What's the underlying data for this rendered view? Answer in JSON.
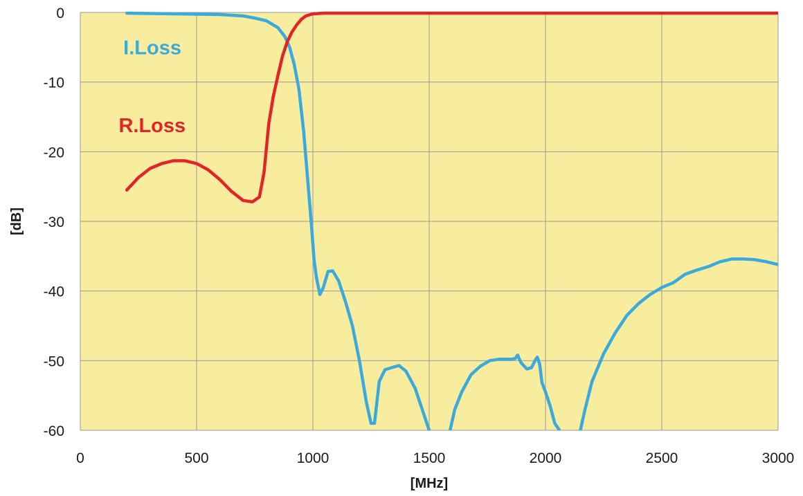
{
  "chart_data": {
    "type": "line",
    "xlabel": "[MHz]",
    "ylabel": "[dB]",
    "xlim": [
      0,
      3000
    ],
    "ylim": [
      -60,
      0
    ],
    "x_ticks": [
      0,
      500,
      1000,
      1500,
      2000,
      2500,
      3000
    ],
    "y_ticks": [
      0,
      -10,
      -20,
      -30,
      -40,
      -50,
      -60
    ],
    "grid": true,
    "plot_background": "#f8ec9f",
    "grid_color": "#9a9a9a",
    "series": [
      {
        "name": "I.Loss",
        "color": "#3aa9db",
        "label_at": [
          185,
          -6
        ],
        "points": [
          [
            200,
            -0.1
          ],
          [
            400,
            -0.2
          ],
          [
            600,
            -0.3
          ],
          [
            700,
            -0.5
          ],
          [
            750,
            -0.8
          ],
          [
            800,
            -1.2
          ],
          [
            850,
            -2.2
          ],
          [
            880,
            -3.5
          ],
          [
            900,
            -5.0
          ],
          [
            920,
            -7.5
          ],
          [
            940,
            -11
          ],
          [
            960,
            -17
          ],
          [
            980,
            -25
          ],
          [
            995,
            -31
          ],
          [
            1005,
            -35.5
          ],
          [
            1015,
            -38
          ],
          [
            1030,
            -40.5
          ],
          [
            1045,
            -39.5
          ],
          [
            1065,
            -37.2
          ],
          [
            1085,
            -37.1
          ],
          [
            1110,
            -38.5
          ],
          [
            1140,
            -41.5
          ],
          [
            1170,
            -45
          ],
          [
            1200,
            -50
          ],
          [
            1230,
            -56
          ],
          [
            1250,
            -59
          ],
          [
            1265,
            -59
          ],
          [
            1285,
            -53
          ],
          [
            1310,
            -51.3
          ],
          [
            1340,
            -51
          ],
          [
            1370,
            -50.7
          ],
          [
            1400,
            -51.5
          ],
          [
            1440,
            -54
          ],
          [
            1475,
            -57.5
          ],
          [
            1500,
            -60
          ]
        ]
      },
      {
        "points": [
          [
            1590,
            -60
          ],
          [
            1610,
            -57
          ],
          [
            1640,
            -54.5
          ],
          [
            1680,
            -52
          ],
          [
            1720,
            -50.8
          ],
          [
            1760,
            -50
          ],
          [
            1800,
            -49.8
          ],
          [
            1850,
            -49.8
          ],
          [
            1870,
            -49.7
          ],
          [
            1880,
            -49.2
          ],
          [
            1895,
            -50.3
          ],
          [
            1920,
            -51.2
          ],
          [
            1940,
            -51
          ],
          [
            1955,
            -50
          ],
          [
            1965,
            -49.5
          ],
          [
            1975,
            -50.5
          ],
          [
            1985,
            -53.2
          ],
          [
            2000,
            -54.5
          ],
          [
            2020,
            -56.5
          ],
          [
            2040,
            -59
          ],
          [
            2060,
            -60
          ]
        ],
        "color": "#3aa9db"
      },
      {
        "points": [
          [
            2150,
            -60
          ],
          [
            2170,
            -57
          ],
          [
            2200,
            -53
          ],
          [
            2250,
            -49
          ],
          [
            2300,
            -46
          ],
          [
            2350,
            -43.5
          ],
          [
            2400,
            -41.8
          ],
          [
            2450,
            -40.5
          ],
          [
            2500,
            -39.5
          ],
          [
            2550,
            -38.8
          ],
          [
            2600,
            -37.6
          ],
          [
            2650,
            -37
          ],
          [
            2700,
            -36.5
          ],
          [
            2750,
            -35.8
          ],
          [
            2800,
            -35.4
          ],
          [
            2850,
            -35.4
          ],
          [
            2900,
            -35.5
          ],
          [
            2950,
            -35.8
          ],
          [
            3000,
            -36.2
          ]
        ],
        "color": "#3aa9db"
      },
      {
        "name": "R.Loss",
        "color": "#e32427",
        "label_at": [
          165,
          -17.2
        ],
        "points": [
          [
            200,
            -25.5
          ],
          [
            250,
            -23.7
          ],
          [
            300,
            -22.4
          ],
          [
            350,
            -21.7
          ],
          [
            400,
            -21.3
          ],
          [
            450,
            -21.3
          ],
          [
            500,
            -21.7
          ],
          [
            550,
            -22.6
          ],
          [
            600,
            -24
          ],
          [
            650,
            -25.7
          ],
          [
            700,
            -27
          ],
          [
            740,
            -27.2
          ],
          [
            770,
            -26.5
          ],
          [
            790,
            -23
          ],
          [
            810,
            -16
          ],
          [
            830,
            -12
          ],
          [
            850,
            -9
          ],
          [
            870,
            -6.2
          ],
          [
            890,
            -4.2
          ],
          [
            910,
            -2.8
          ],
          [
            930,
            -1.8
          ],
          [
            950,
            -1.0
          ],
          [
            970,
            -0.5
          ],
          [
            1000,
            -0.2
          ],
          [
            1050,
            -0.1
          ],
          [
            1200,
            -0.1
          ],
          [
            2000,
            -0.1
          ],
          [
            3000,
            -0.1
          ]
        ]
      }
    ]
  }
}
